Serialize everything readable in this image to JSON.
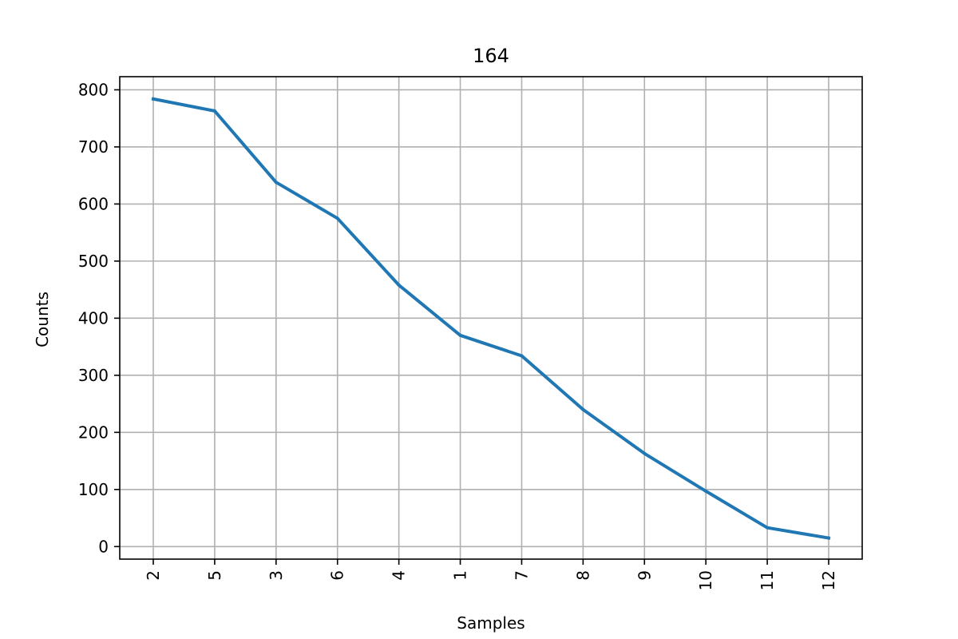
{
  "chart_data": {
    "type": "line",
    "title": "164",
    "xlabel": "Samples",
    "ylabel": "Counts",
    "categories": [
      "2",
      "5",
      "3",
      "6",
      "4",
      "1",
      "7",
      "8",
      "9",
      "10",
      "11",
      "12"
    ],
    "values": [
      784,
      763,
      638,
      575,
      458,
      370,
      334,
      240,
      163,
      97,
      33,
      15
    ],
    "ylim": [
      -22,
      823
    ],
    "yticks": [
      0,
      100,
      200,
      300,
      400,
      500,
      600,
      700,
      800
    ],
    "grid": true,
    "x_tick_rotation": "vertical",
    "line_color": "#1f77b4",
    "grid_color": "#b0b0b0"
  }
}
